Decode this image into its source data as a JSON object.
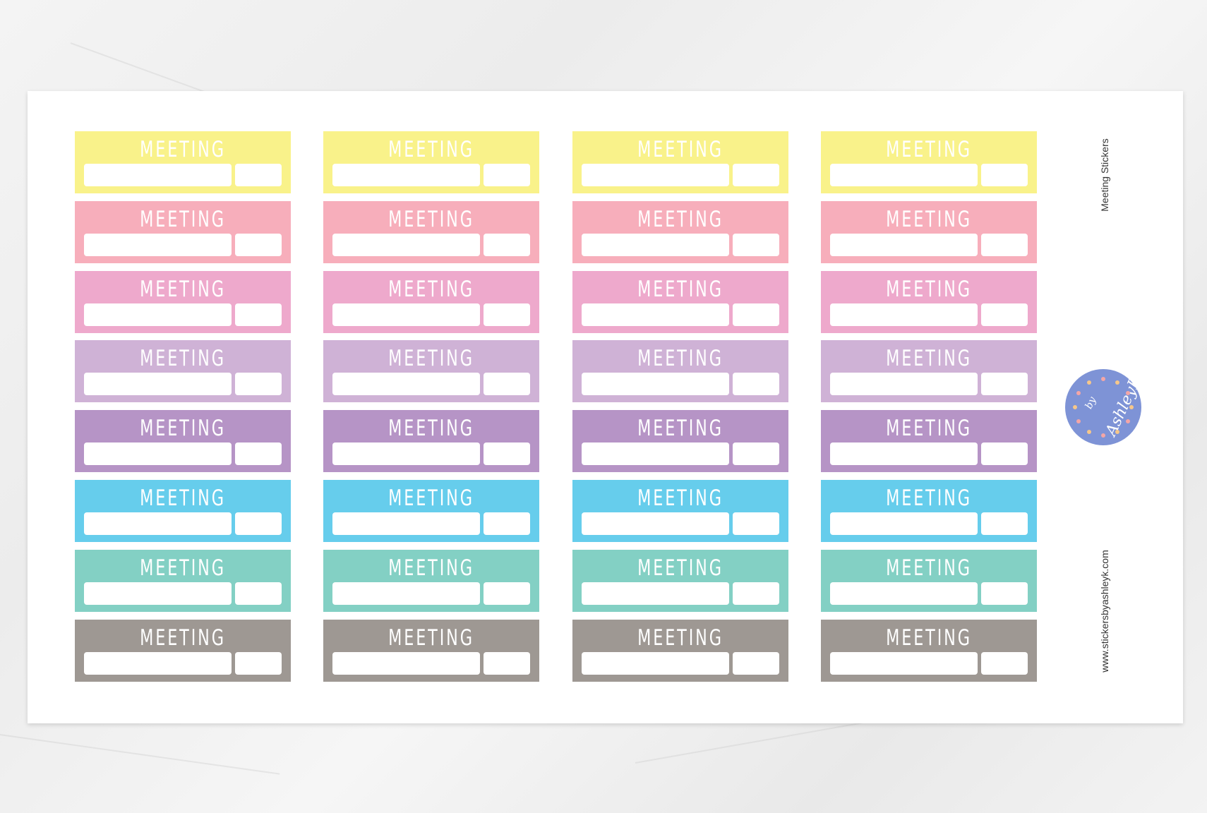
{
  "sticker_label": "MEETING",
  "sheet": {
    "title": "Meeting Stickers",
    "website": "www.stickersbyashleyk.com",
    "logo_text": "by AshleyK"
  },
  "columns": 4,
  "rows": [
    {
      "color": "#f9f28a"
    },
    {
      "color": "#f7aebb"
    },
    {
      "color": "#eea9cc"
    },
    {
      "color": "#cfb2d6"
    },
    {
      "color": "#b694c6"
    },
    {
      "color": "#66cdec"
    },
    {
      "color": "#83d0c4"
    },
    {
      "color": "#9e9893"
    }
  ],
  "logo_color": "#7e93d6"
}
